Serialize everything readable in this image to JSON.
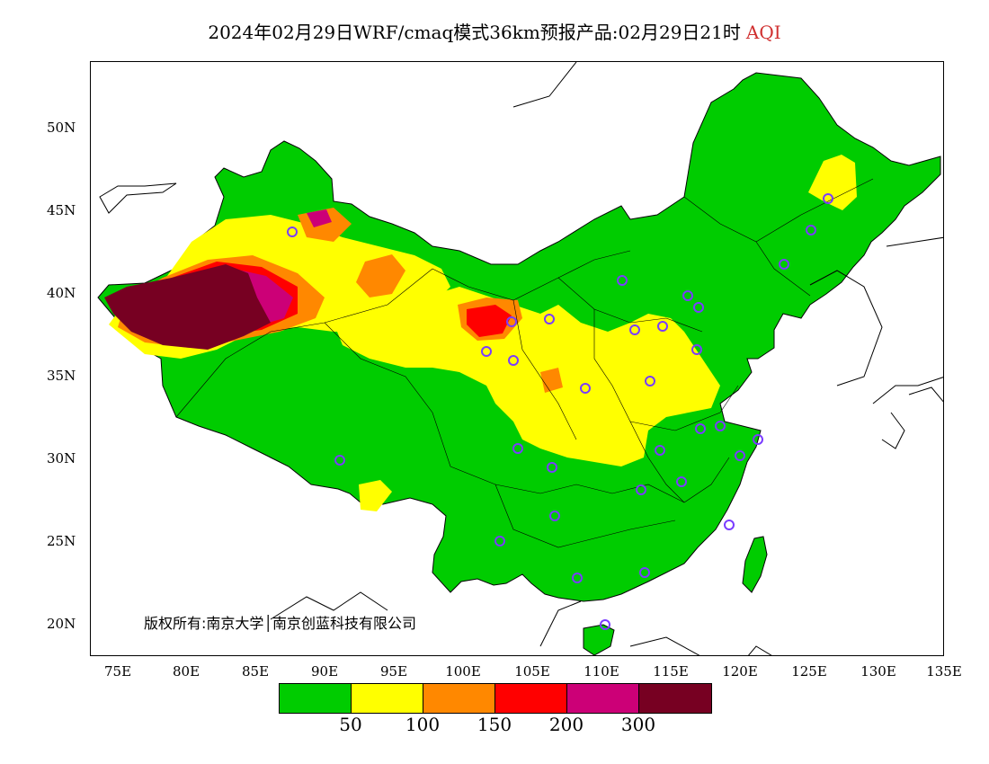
{
  "header": {
    "title": "2024年02月29日WRF/cmaq模式36km预报产品:02月29日21时",
    "variable": "AQI"
  },
  "axes": {
    "y_ticks": [
      "50N",
      "45N",
      "40N",
      "35N",
      "30N",
      "25N",
      "20N"
    ],
    "x_ticks": [
      "75E",
      "80E",
      "85E",
      "90E",
      "95E",
      "100E",
      "105E",
      "110E",
      "115E",
      "120E",
      "125E",
      "130E",
      "135E"
    ]
  },
  "copyright": "版权所有:南京大学│南京创蓝科技有限公司",
  "legend": {
    "colors": [
      "#00cc00",
      "#ffff00",
      "#ff8800",
      "#ff0000",
      "#cc0077",
      "#770022"
    ],
    "labels": [
      "50",
      "100",
      "150",
      "200",
      "300"
    ]
  },
  "stations_color": "#7a3cff"
}
